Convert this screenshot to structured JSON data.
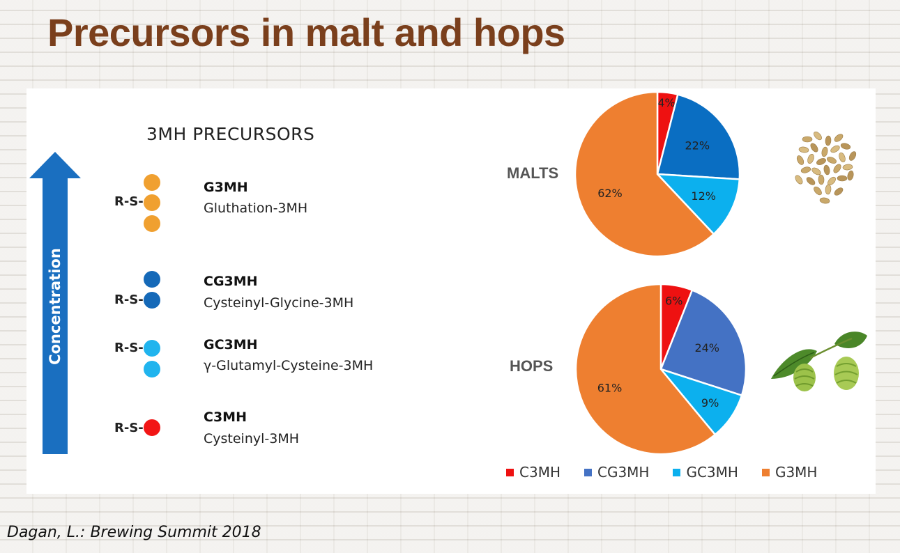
{
  "title": "Precursors in malt and hops",
  "citation": "Dagan, L.: Brewing Summit 2018",
  "precursors": {
    "heading": "3MH PRECURSORS",
    "arrow_label": "Concentration",
    "rs_label": "R-S-",
    "items": [
      {
        "name": "G3MH",
        "description": "Gluthation-3MH",
        "color": "#f0a030"
      },
      {
        "name": "CG3MH",
        "description": "Cysteinyl-Glycine-3MH",
        "color": "#1569b8"
      },
      {
        "name": "GC3MH",
        "description": "γ-Glutamyl-Cysteine-3MH",
        "color": "#20b4ee"
      },
      {
        "name": "C3MH",
        "description": "Cysteinyl-3MH",
        "color": "#f21515"
      }
    ]
  },
  "chart_data": [
    {
      "type": "pie",
      "title": "MALTS",
      "categories": [
        "C3MH",
        "CG3MH",
        "GC3MH",
        "G3MH"
      ],
      "values": [
        4,
        22,
        12,
        62
      ],
      "labels": [
        "4%",
        "22%",
        "12%",
        "62%"
      ],
      "colors": [
        "#ee1111",
        "#0a6ec2",
        "#0cb0ee",
        "#ee7f30"
      ]
    },
    {
      "type": "pie",
      "title": "HOPS",
      "categories": [
        "C3MH",
        "CG3MH",
        "GC3MH",
        "G3MH"
      ],
      "values": [
        6,
        24,
        9,
        61
      ],
      "labels": [
        "6%",
        "24%",
        "9%",
        "61%"
      ],
      "colors": [
        "#ee1111",
        "#4472c4",
        "#0cb0ee",
        "#ee7f30"
      ]
    }
  ],
  "legend": [
    {
      "label": "C3MH",
      "color": "#ee1111"
    },
    {
      "label": "CG3MH",
      "color": "#4472c4"
    },
    {
      "label": "GC3MH",
      "color": "#0cb0ee"
    },
    {
      "label": "G3MH",
      "color": "#ee7f30"
    }
  ]
}
